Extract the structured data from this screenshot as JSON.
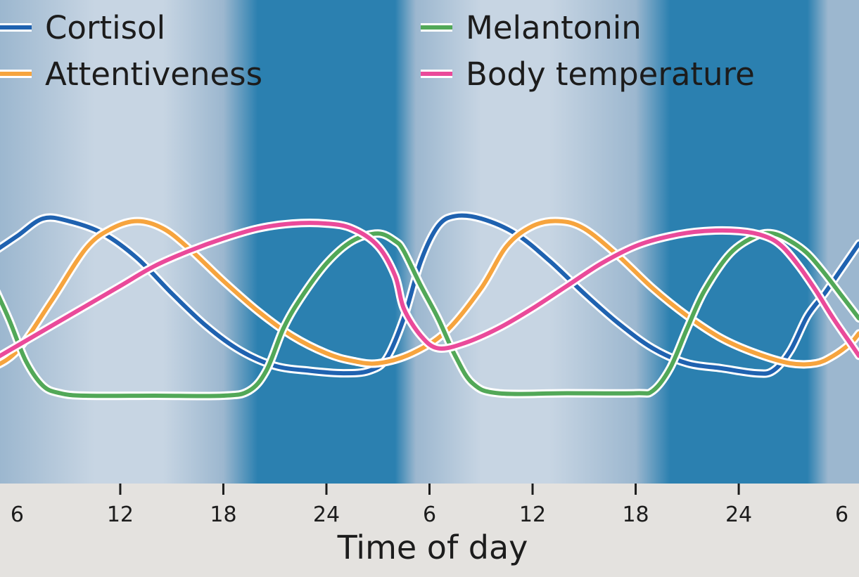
{
  "chart_data": {
    "type": "line",
    "xlabel": "Time of day",
    "x_ticks": [
      "6",
      "12",
      "18",
      "24",
      "6",
      "12",
      "18",
      "24",
      "6"
    ],
    "x_tick_hours": [
      6,
      12,
      18,
      24,
      30,
      36,
      42,
      48,
      54
    ],
    "xlim": [
      5,
      55
    ],
    "ylim": [
      0,
      100
    ],
    "grid": false,
    "legend_position": "top",
    "night_bands": [
      [
        20,
        28
      ],
      [
        44,
        52
      ]
    ],
    "colors": {
      "day_light": "#c7d5e3",
      "day_edge": "#9cb7cf",
      "night": "#2b80b0",
      "axis_bg": "#e4e2df",
      "outline": "#ffffff"
    },
    "series": [
      {
        "name": "Cortisol",
        "color": "#1f62b0",
        "x": [
          4.5,
          6,
          7.5,
          9,
          11,
          13,
          15,
          17,
          19,
          21,
          23,
          25,
          26.5,
          27.5,
          28.5,
          29.5,
          30.5,
          31.5,
          33,
          35,
          37,
          39,
          41,
          43,
          45,
          47,
          49,
          50,
          51,
          52,
          53,
          54,
          55
        ],
        "y": [
          66,
          73,
          80,
          79,
          74,
          64,
          50,
          37,
          27,
          21,
          19,
          18,
          19,
          24,
          40,
          63,
          77,
          81,
          80,
          74,
          63,
          50,
          38,
          28,
          22,
          20,
          18,
          19,
          27,
          41,
          50,
          60,
          70
        ]
      },
      {
        "name": "Attentiveness",
        "color": "#f6a43e",
        "x": [
          4.5,
          6,
          8,
          10,
          11.5,
          13,
          14.5,
          16,
          18,
          20,
          22,
          24,
          25.5,
          27,
          29,
          31,
          33,
          34.5,
          36,
          37.5,
          39,
          41,
          43,
          45,
          47,
          49,
          51,
          52.5,
          53.5,
          54.5,
          55
        ],
        "y": [
          20,
          27,
          47,
          68,
          76,
          79,
          76,
          68,
          55,
          43,
          33,
          26,
          23,
          22,
          26,
          35,
          52,
          69,
          77,
          79,
          76,
          65,
          52,
          41,
          32,
          26,
          22,
          22,
          25,
          30,
          34
        ]
      },
      {
        "name": "Melantonin",
        "color": "#52a858",
        "x": [
          4.5,
          5.5,
          6.5,
          7.5,
          8.5,
          10,
          14,
          18,
          19.5,
          20.5,
          21.5,
          22.5,
          24,
          25.5,
          27,
          28,
          28.5,
          29.5,
          30.5,
          31.5,
          32.5,
          34,
          38,
          42,
          43,
          44,
          45,
          46,
          47.5,
          49,
          50,
          51,
          52,
          53,
          54,
          55
        ],
        "y": [
          55,
          40,
          23,
          13,
          10,
          9,
          9,
          9,
          11,
          19,
          36,
          48,
          62,
          71,
          74,
          71,
          67,
          53,
          40,
          25,
          14,
          10,
          10,
          10,
          11,
          20,
          36,
          51,
          66,
          73,
          74,
          71,
          66,
          58,
          49,
          40
        ]
      },
      {
        "name": "Body temperature",
        "color": "#ea4a9a",
        "x": [
          4.5,
          6,
          8,
          10,
          12,
          14,
          16,
          18,
          20,
          22,
          24,
          25.5,
          27,
          28,
          28.5,
          29.5,
          30.5,
          32,
          34,
          36,
          38,
          40,
          42,
          44,
          46,
          48,
          49.5,
          50.5,
          51.5,
          52.5,
          53.5,
          54.5,
          55
        ],
        "y": [
          23,
          29,
          37,
          45,
          53,
          61,
          67,
          72,
          76,
          78,
          78,
          76,
          69,
          57,
          44,
          33,
          28,
          30,
          36,
          44,
          53,
          62,
          69,
          73,
          75,
          75,
          73,
          69,
          61,
          51,
          40,
          30,
          25
        ]
      }
    ]
  }
}
